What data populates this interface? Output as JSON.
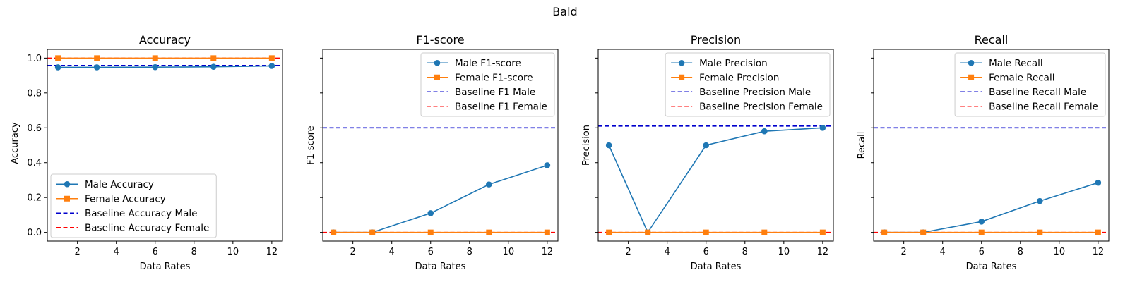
{
  "figure": {
    "suptitle": "Bald"
  },
  "colors": {
    "male": "#1f77b4",
    "female": "#ff7f0e",
    "baseline_male": "#0000cc",
    "baseline_female": "#ff0000"
  },
  "chart_data": [
    {
      "type": "line",
      "title": "Accuracy",
      "xlabel": "Data Rates",
      "ylabel": "Accuracy",
      "x": [
        1,
        3,
        6,
        9,
        12
      ],
      "xlim": [
        0.45,
        12.55
      ],
      "ylim": [
        -0.05,
        1.05
      ],
      "xticks": [
        "2",
        "4",
        "6",
        "8",
        "10",
        "12"
      ],
      "yticks": [
        "0.0",
        "0.2",
        "0.4",
        "0.6",
        "0.8",
        "1.0"
      ],
      "yticks_values": [
        0.0,
        0.2,
        0.4,
        0.6,
        0.8,
        1.0
      ],
      "show_ytick_labels": true,
      "legend_position": "lower-left",
      "series": [
        {
          "name": "Male Accuracy",
          "values": [
            0.947,
            0.947,
            0.948,
            0.95,
            0.955
          ]
        },
        {
          "name": "Female Accuracy",
          "values": [
            1.0,
            1.0,
            1.0,
            1.0,
            1.0
          ]
        }
      ],
      "baselines": [
        {
          "name": "Baseline Accuracy Male",
          "value": 0.958
        },
        {
          "name": "Baseline Accuracy Female",
          "value": 1.0
        }
      ]
    },
    {
      "type": "line",
      "title": "F1-score",
      "xlabel": "Data Rates",
      "ylabel": "F1-score",
      "x": [
        1,
        3,
        6,
        9,
        12
      ],
      "xlim": [
        0.45,
        12.55
      ],
      "ylim": [
        -0.05,
        1.05
      ],
      "xticks": [
        "2",
        "4",
        "6",
        "8",
        "10",
        "12"
      ],
      "yticks": [
        "",
        "",
        "",
        "",
        "",
        ""
      ],
      "yticks_values": [
        0.0,
        0.2,
        0.4,
        0.6,
        0.8,
        1.0
      ],
      "show_ytick_labels": false,
      "legend_position": "upper-right",
      "series": [
        {
          "name": "Male F1-score",
          "values": [
            0.0,
            0.0,
            0.11,
            0.275,
            0.385
          ]
        },
        {
          "name": "Female F1-score",
          "values": [
            0.0,
            0.0,
            0.0,
            0.0,
            0.0
          ]
        }
      ],
      "baselines": [
        {
          "name": "Baseline F1 Male",
          "value": 0.6
        },
        {
          "name": "Baseline F1 Female",
          "value": 0.0
        }
      ]
    },
    {
      "type": "line",
      "title": "Precision",
      "xlabel": "Data Rates",
      "ylabel": "Precision",
      "x": [
        1,
        3,
        6,
        9,
        12
      ],
      "xlim": [
        0.45,
        12.55
      ],
      "ylim": [
        -0.05,
        1.05
      ],
      "xticks": [
        "2",
        "4",
        "6",
        "8",
        "10",
        "12"
      ],
      "yticks": [
        "",
        "",
        "",
        "",
        "",
        ""
      ],
      "yticks_values": [
        0.0,
        0.2,
        0.4,
        0.6,
        0.8,
        1.0
      ],
      "show_ytick_labels": false,
      "legend_position": "upper-right",
      "series": [
        {
          "name": "Male Precision",
          "values": [
            0.5,
            0.0,
            0.5,
            0.58,
            0.6
          ]
        },
        {
          "name": "Female Precision",
          "values": [
            0.0,
            0.0,
            0.0,
            0.0,
            0.0
          ]
        }
      ],
      "baselines": [
        {
          "name": "Baseline Precision Male",
          "value": 0.61
        },
        {
          "name": "Baseline Precision Female",
          "value": 0.0
        }
      ]
    },
    {
      "type": "line",
      "title": "Recall",
      "xlabel": "Data Rates",
      "ylabel": "Recall",
      "x": [
        1,
        3,
        6,
        9,
        12
      ],
      "xlim": [
        0.45,
        12.55
      ],
      "ylim": [
        -0.05,
        1.05
      ],
      "xticks": [
        "2",
        "4",
        "6",
        "8",
        "10",
        "12"
      ],
      "yticks": [
        "",
        "",
        "",
        "",
        "",
        ""
      ],
      "yticks_values": [
        0.0,
        0.2,
        0.4,
        0.6,
        0.8,
        1.0
      ],
      "show_ytick_labels": false,
      "legend_position": "upper-right",
      "series": [
        {
          "name": "Male Recall",
          "values": [
            0.0,
            0.0,
            0.062,
            0.18,
            0.285
          ]
        },
        {
          "name": "Female Recall",
          "values": [
            0.0,
            0.0,
            0.0,
            0.0,
            0.0
          ]
        }
      ],
      "baselines": [
        {
          "name": "Baseline Recall Male",
          "value": 0.6
        },
        {
          "name": "Baseline Recall Female",
          "value": 0.0
        }
      ]
    }
  ]
}
